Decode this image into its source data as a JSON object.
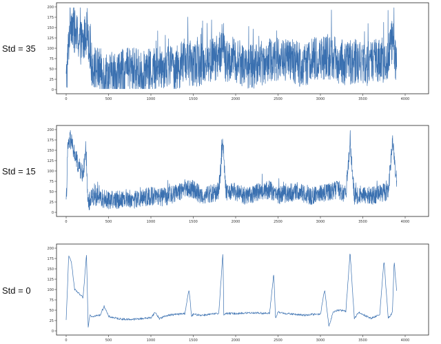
{
  "colors": {
    "series": "#3a70b0",
    "axis": "#222222",
    "background": "#ffffff"
  },
  "chart_data": [
    {
      "type": "line",
      "row_label": "Std = 35",
      "x_ticks": [
        "0",
        "500",
        "1000",
        "1500",
        "2000",
        "2500",
        "3000",
        "3500",
        "4000"
      ],
      "y_ticks": [
        "0",
        "25",
        "50",
        "75",
        "100",
        "125",
        "150",
        "175",
        "200"
      ],
      "xlim": [
        0,
        4000
      ],
      "ylim": [
        0,
        200
      ],
      "x": [
        0,
        50,
        100,
        150,
        200,
        250,
        300,
        400,
        500,
        600,
        700,
        800,
        900,
        1000,
        1100,
        1200,
        1300,
        1400,
        1500,
        1600,
        1700,
        1800,
        1850,
        1880,
        1950,
        2000,
        2100,
        2200,
        2300,
        2400,
        2500,
        2600,
        2700,
        2800,
        2900,
        3000,
        3100,
        3200,
        3300,
        3400,
        3500,
        3600,
        3700,
        3800,
        3850,
        3900
      ],
      "y": [
        15,
        175,
        140,
        120,
        110,
        150,
        60,
        45,
        35,
        40,
        45,
        50,
        40,
        45,
        55,
        60,
        50,
        70,
        60,
        65,
        70,
        80,
        120,
        60,
        75,
        70,
        60,
        55,
        65,
        70,
        75,
        70,
        65,
        60,
        70,
        75,
        80,
        70,
        65,
        70,
        60,
        65,
        70,
        75,
        120,
        60
      ],
      "series_style": "noisy"
    },
    {
      "type": "line",
      "row_label": "Std = 15",
      "x_ticks": [
        "0",
        "500",
        "1000",
        "1500",
        "2000",
        "2500",
        "3000",
        "3500",
        "4000"
      ],
      "y_ticks": [
        "0",
        "25",
        "50",
        "75",
        "100",
        "125",
        "150",
        "175",
        "200"
      ],
      "xlim": [
        0,
        4000
      ],
      "ylim": [
        0,
        200
      ],
      "x": [
        0,
        20,
        50,
        100,
        150,
        200,
        230,
        260,
        300,
        400,
        500,
        600,
        700,
        800,
        900,
        1000,
        1100,
        1200,
        1300,
        1400,
        1500,
        1600,
        1700,
        1800,
        1850,
        1880,
        1900,
        2000,
        2100,
        2200,
        2300,
        2400,
        2500,
        2600,
        2700,
        2800,
        2900,
        3000,
        3100,
        3200,
        3300,
        3350,
        3400,
        3500,
        3600,
        3700,
        3800,
        3850,
        3900
      ],
      "y": [
        15,
        160,
        175,
        140,
        110,
        90,
        150,
        20,
        40,
        35,
        30,
        30,
        35,
        30,
        35,
        40,
        35,
        40,
        45,
        60,
        55,
        40,
        45,
        50,
        170,
        60,
        45,
        50,
        40,
        45,
        50,
        55,
        40,
        45,
        50,
        45,
        40,
        45,
        50,
        55,
        45,
        170,
        40,
        45,
        40,
        45,
        50,
        170,
        80
      ],
      "series_style": "medium"
    },
    {
      "type": "line",
      "row_label": "Std = 0",
      "x_ticks": [
        "0",
        "500",
        "1000",
        "1500",
        "2000",
        "2500",
        "3000",
        "3500",
        "4000"
      ],
      "y_ticks": [
        "0",
        "25",
        "50",
        "75",
        "100",
        "125",
        "150",
        "175",
        "200"
      ],
      "xlim": [
        0,
        4000
      ],
      "ylim": [
        0,
        200
      ],
      "x": [
        0,
        30,
        60,
        100,
        150,
        200,
        240,
        260,
        280,
        300,
        400,
        450,
        500,
        600,
        700,
        800,
        900,
        1000,
        1050,
        1100,
        1200,
        1300,
        1400,
        1450,
        1480,
        1500,
        1600,
        1700,
        1800,
        1850,
        1860,
        1880,
        1950,
        2000,
        2100,
        2200,
        2300,
        2400,
        2450,
        2470,
        2500,
        2600,
        2700,
        2800,
        2900,
        3000,
        3050,
        3100,
        3150,
        3200,
        3300,
        3350,
        3400,
        3450,
        3500,
        3600,
        3700,
        3750,
        3800,
        3850,
        3870,
        3900
      ],
      "y": [
        25,
        180,
        170,
        100,
        90,
        80,
        185,
        10,
        40,
        35,
        38,
        60,
        35,
        30,
        28,
        28,
        30,
        32,
        45,
        30,
        38,
        40,
        42,
        100,
        35,
        40,
        38,
        40,
        42,
        190,
        40,
        42,
        42,
        42,
        43,
        44,
        43,
        42,
        140,
        30,
        45,
        42,
        40,
        38,
        40,
        40,
        100,
        10,
        45,
        50,
        48,
        190,
        30,
        45,
        40,
        30,
        40,
        170,
        30,
        45,
        170,
        95
      ],
      "series_style": "smooth"
    }
  ]
}
